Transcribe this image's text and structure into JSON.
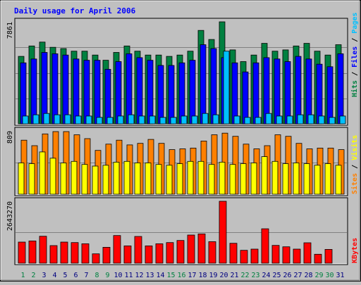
{
  "title": "Daily usage for April 2006",
  "colors": {
    "background": "#c0c0c0",
    "title": "#0000ff",
    "hits": "#008040",
    "files": "#0000ff",
    "pages": "#00c0ff",
    "visits": "#ffff00",
    "sites": "#ff8000",
    "kbytes": "#ff0000",
    "weekend_day_label": "#008040",
    "weekday_label": "#000080"
  },
  "chart_data": {
    "type": "bar",
    "categories": [
      "1",
      "2",
      "3",
      "4",
      "5",
      "6",
      "7",
      "8",
      "9",
      "10",
      "11",
      "12",
      "13",
      "14",
      "15",
      "16",
      "17",
      "18",
      "19",
      "20",
      "21",
      "22",
      "23",
      "24",
      "25",
      "26",
      "27",
      "28",
      "29",
      "30",
      "31"
    ],
    "weekend_days": [
      "1",
      "2",
      "8",
      "9",
      "15",
      "16",
      "22",
      "23",
      "29",
      "30"
    ],
    "panels": [
      {
        "id": "usage",
        "max_label": "7861",
        "ymax": 7861,
        "legend": [
          "Hits",
          "/",
          "Files",
          "/",
          "Pages"
        ],
        "series": [
          {
            "name": "Hits",
            "values": [
              5200,
              6000,
              6300,
              5900,
              5800,
              5600,
              5600,
              5300,
              4900,
              5500,
              6000,
              5600,
              5300,
              5300,
              5200,
              5300,
              5600,
              7200,
              6500,
              7861,
              5700,
              4800,
              5300,
              6200,
              5600,
              5700,
              6000,
              6200,
              5600,
              5300,
              6100
            ]
          },
          {
            "name": "Files",
            "values": [
              4700,
              5000,
              5500,
              5400,
              5300,
              5000,
              4900,
              4900,
              4200,
              4800,
              5400,
              5100,
              4900,
              4500,
              4500,
              4700,
              4900,
              6100,
              5800,
              5100,
              4700,
              4000,
              4700,
              5100,
              5000,
              4800,
              5200,
              5000,
              4600,
              4400,
              5400
            ]
          },
          {
            "name": "Pages",
            "values": [
              600,
              700,
              800,
              700,
              700,
              600,
              600,
              500,
              500,
              600,
              700,
              600,
              600,
              500,
              500,
              600,
              600,
              800,
              700,
              5600,
              600,
              500,
              500,
              800,
              600,
              600,
              700,
              700,
              600,
              500,
              600
            ]
          }
        ]
      },
      {
        "id": "visitors",
        "max_label": "809",
        "ymax": 809,
        "legend": [
          "Sites",
          "/",
          "Visits"
        ],
        "series": [
          {
            "name": "Visits",
            "values": [
              400,
              390,
              540,
              460,
              400,
              420,
              380,
              360,
              370,
              410,
              420,
              400,
              400,
              380,
              370,
              390,
              420,
              420,
              380,
              410,
              380,
              390,
              400,
              480,
              420,
              390,
              400,
              390,
              370,
              390,
              370
            ]
          },
          {
            "name": "Sites",
            "values": [
              690,
              620,
              770,
              800,
              800,
              760,
              710,
              560,
              640,
              690,
              630,
              650,
              700,
              650,
              570,
              580,
              590,
              680,
              760,
              780,
              740,
              640,
              580,
              620,
              760,
              740,
              650,
              580,
              590,
              590,
              570
            ]
          }
        ]
      },
      {
        "id": "volume",
        "max_label": "2643270",
        "ymax": 2643270,
        "legend": [
          "KBytes"
        ],
        "series": [
          {
            "name": "KBytes",
            "values": [
              900000,
              950000,
              1150000,
              750000,
              900000,
              880000,
              830000,
              400000,
              680000,
              1180000,
              740000,
              1140000,
              740000,
              830000,
              880000,
              970000,
              1200000,
              1250000,
              920000,
              2643270,
              850000,
              550000,
              600000,
              1470000,
              760000,
              700000,
              600000,
              870000,
              380000,
              590000,
              0
            ]
          }
        ]
      }
    ]
  }
}
